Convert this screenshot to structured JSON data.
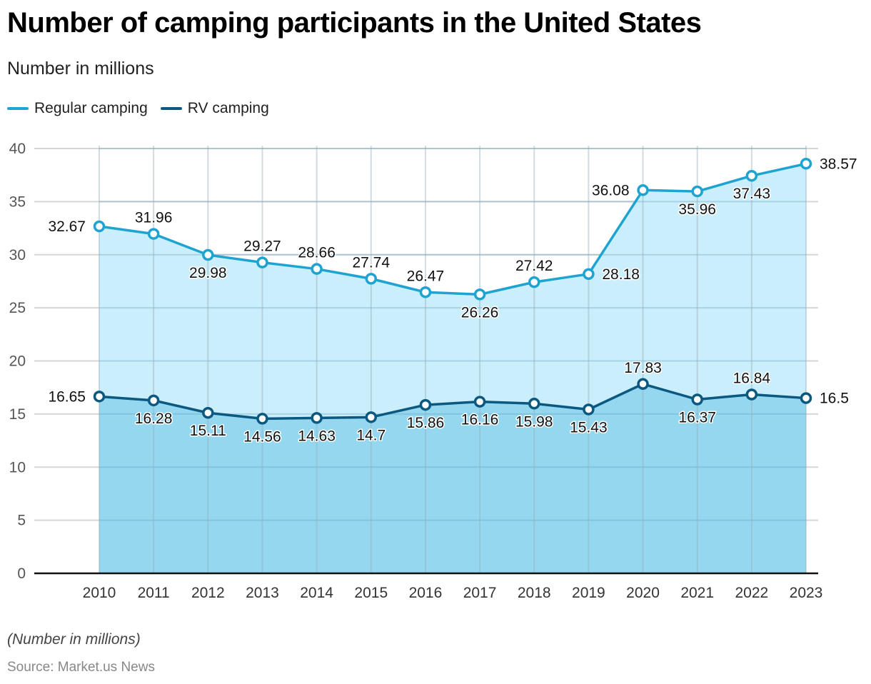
{
  "header": {
    "title": "Number of camping participants in the United States",
    "subtitle": "Number in millions"
  },
  "legend": [
    {
      "label": "Regular camping",
      "color": "#1fa3d1"
    },
    {
      "label": "RV camping",
      "color": "#0b5880"
    }
  ],
  "footer": {
    "note": "(Number in millions)",
    "source": "Source: Market.us News"
  },
  "chart_data": {
    "type": "area",
    "title": "Number of camping participants in the United States",
    "subtitle": "Number in millions",
    "xlabel": "",
    "ylabel": "",
    "categories": [
      "2010",
      "2011",
      "2012",
      "2013",
      "2014",
      "2015",
      "2016",
      "2017",
      "2018",
      "2019",
      "2020",
      "2021",
      "2022",
      "2023"
    ],
    "yticks": [
      0,
      5,
      10,
      15,
      20,
      25,
      30,
      35,
      40
    ],
    "ylim": [
      0,
      40
    ],
    "grid": true,
    "legend_position": "top-left",
    "series": [
      {
        "name": "Regular camping",
        "color": "#1fa3d1",
        "fill": "#cbeefc",
        "values": [
          32.67,
          31.96,
          29.98,
          29.27,
          28.66,
          27.74,
          26.47,
          26.26,
          27.42,
          28.18,
          36.08,
          35.96,
          37.43,
          38.57
        ],
        "label_positions": [
          "left",
          "above",
          "below",
          "above",
          "above",
          "above",
          "above",
          "below",
          "above",
          "right",
          "left",
          "below",
          "below",
          "right"
        ]
      },
      {
        "name": "RV camping",
        "color": "#0b5880",
        "fill": "#94d7ef",
        "values": [
          16.65,
          16.28,
          15.11,
          14.56,
          14.63,
          14.7,
          15.86,
          16.16,
          15.98,
          15.43,
          17.83,
          16.37,
          16.84,
          16.5
        ],
        "label_positions": [
          "left",
          "below",
          "below",
          "below",
          "below",
          "below",
          "below",
          "below",
          "below",
          "below",
          "above",
          "below",
          "above",
          "right"
        ]
      }
    ]
  }
}
